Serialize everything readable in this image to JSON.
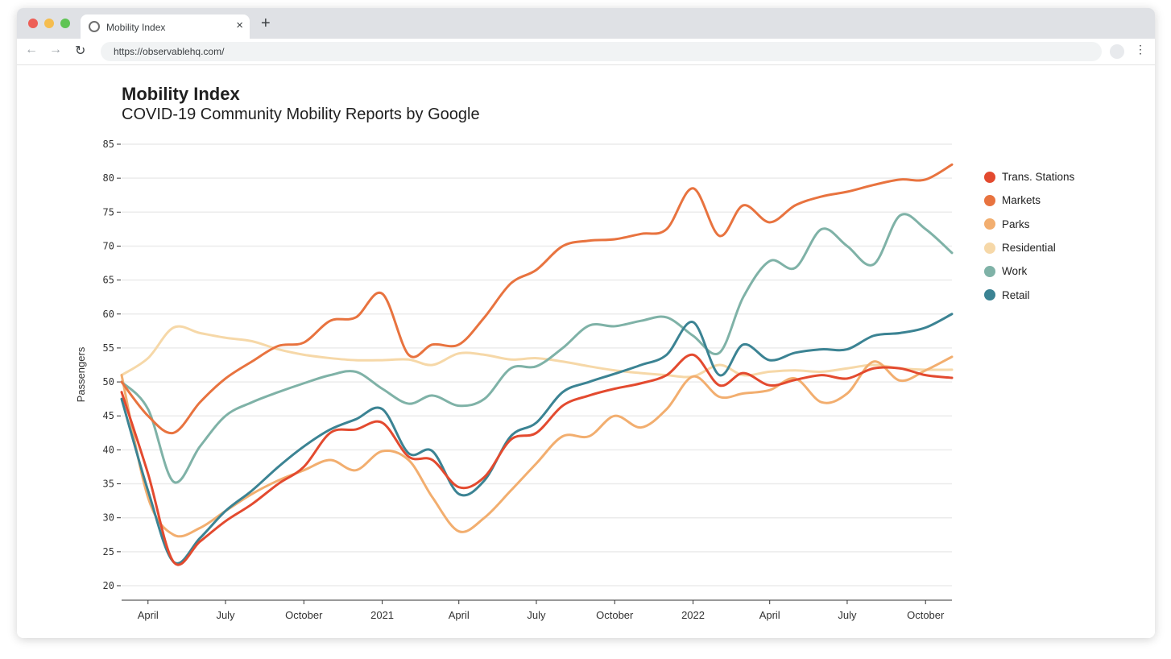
{
  "browser": {
    "tab_title": "Mobility Index",
    "tab_close": "×",
    "new_tab": "+",
    "url": "https://observablehq.com/"
  },
  "chart_data": {
    "type": "line",
    "title": "Mobility Index",
    "subtitle": "COVID-19 Community Mobility Reports by Google",
    "ylabel": "Passengers",
    "ylim": [
      20,
      85
    ],
    "yticks": [
      20,
      25,
      30,
      35,
      40,
      45,
      50,
      55,
      60,
      65,
      70,
      75,
      80,
      85
    ],
    "xtick_labels": [
      "April",
      "July",
      "October",
      "2021",
      "April",
      "July",
      "October",
      "2022",
      "April",
      "July",
      "October"
    ],
    "grid": "horizontal",
    "legend_position": "right",
    "x": [
      "2020-03-01",
      "2020-04-01",
      "2020-05-01",
      "2020-06-01",
      "2020-07-01",
      "2020-08-01",
      "2020-09-01",
      "2020-10-01",
      "2020-11-01",
      "2020-12-01",
      "2021-01-01",
      "2021-02-01",
      "2021-03-01",
      "2021-04-01",
      "2021-05-01",
      "2021-06-01",
      "2021-07-01",
      "2021-08-01",
      "2021-09-01",
      "2021-10-01",
      "2021-11-01",
      "2021-12-01",
      "2022-01-01",
      "2022-02-01",
      "2022-03-01",
      "2022-04-01",
      "2022-05-01",
      "2022-06-01",
      "2022-07-01",
      "2022-08-01",
      "2022-09-01",
      "2022-10-01",
      "2022-11-01"
    ],
    "series": [
      {
        "name": "Trans. Stations",
        "color": "#e34a2f",
        "values": [
          48.5,
          36.5,
          23.5,
          26.5,
          29.5,
          32.0,
          35.0,
          37.5,
          42.5,
          43.0,
          44.0,
          39.0,
          38.5,
          34.5,
          36.0,
          41.5,
          42.5,
          46.5,
          48.0,
          49.0,
          49.8,
          51.0,
          54.0,
          49.5,
          51.3,
          49.5,
          50.3,
          51.0,
          50.5,
          52.0,
          52.0,
          51.0,
          50.6
        ]
      },
      {
        "name": "Markets",
        "color": "#e8733f",
        "values": [
          50.0,
          45.0,
          42.5,
          47.0,
          50.5,
          53.0,
          55.3,
          55.8,
          59.0,
          59.5,
          63.0,
          54.0,
          55.5,
          55.5,
          59.5,
          64.5,
          66.5,
          70.0,
          70.8,
          71.0,
          71.8,
          72.5,
          78.5,
          71.5,
          76.0,
          73.5,
          76.0,
          77.3,
          78.0,
          79.0,
          79.8,
          79.8,
          82.0
        ]
      },
      {
        "name": "Parks",
        "color": "#f2ae6f",
        "values": [
          51.0,
          33.0,
          27.5,
          28.5,
          31.0,
          33.5,
          35.5,
          37.0,
          38.5,
          37.0,
          39.8,
          38.5,
          33.0,
          28.0,
          30.0,
          34.0,
          38.0,
          42.0,
          42.0,
          45.0,
          43.3,
          46.0,
          50.8,
          47.8,
          48.3,
          48.8,
          50.5,
          47.0,
          48.3,
          53.0,
          50.2,
          51.7,
          53.7
        ]
      },
      {
        "name": "Residential",
        "color": "#f6d8a8",
        "values": [
          51.0,
          53.5,
          58.0,
          57.2,
          56.5,
          56.0,
          54.8,
          54.0,
          53.5,
          53.2,
          53.2,
          53.3,
          52.5,
          54.2,
          54.0,
          53.3,
          53.5,
          53.0,
          52.3,
          51.7,
          51.3,
          51.0,
          50.8,
          52.5,
          51.0,
          51.5,
          51.7,
          51.5,
          52.0,
          52.5,
          52.0,
          51.8,
          51.8
        ]
      },
      {
        "name": "Work",
        "color": "#7fb2a7",
        "values": [
          50.0,
          46.0,
          35.3,
          40.5,
          45.0,
          47.0,
          48.5,
          49.8,
          51.0,
          51.5,
          49.0,
          46.8,
          48.0,
          46.5,
          47.5,
          52.0,
          52.3,
          55.0,
          58.3,
          58.2,
          59.0,
          59.5,
          56.8,
          54.3,
          62.5,
          67.8,
          66.8,
          72.5,
          70.0,
          67.3,
          74.5,
          72.5,
          69.0
        ]
      },
      {
        "name": "Retail",
        "color": "#3b8393",
        "values": [
          47.5,
          34.0,
          23.5,
          27.0,
          31.0,
          34.0,
          37.5,
          40.5,
          43.0,
          44.5,
          46.0,
          39.5,
          39.8,
          33.5,
          35.5,
          42.0,
          44.0,
          48.5,
          50.0,
          51.2,
          52.5,
          54.0,
          58.8,
          51.0,
          55.5,
          53.2,
          54.3,
          54.8,
          54.8,
          56.8,
          57.2,
          58.0,
          60.0
        ]
      }
    ]
  }
}
